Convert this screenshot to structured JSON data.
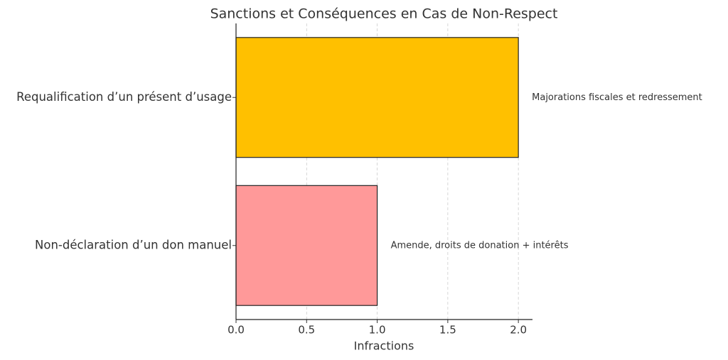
{
  "chart_data": {
    "type": "barh",
    "title": "Sanctions et Conséquences en Cas de Non-Respect",
    "xlabel": "Infractions",
    "categories": [
      "Requalification d’un présent d’usage",
      "Non-déclaration d’un don manuel"
    ],
    "values": [
      2,
      1
    ],
    "colors": [
      "#ffc000",
      "#ff9999"
    ],
    "annotations": [
      "Majorations fiscales et redressement",
      "Amende, droits de donation + intérêts"
    ],
    "xlim": [
      0,
      2.1
    ],
    "xticks": [
      {
        "value": 0,
        "label": "0.0"
      },
      {
        "value": 0.5,
        "label": "0.5"
      },
      {
        "value": 1,
        "label": "1.0"
      },
      {
        "value": 1.5,
        "label": "1.5"
      },
      {
        "value": 2,
        "label": "2.0"
      }
    ],
    "grid": true
  }
}
